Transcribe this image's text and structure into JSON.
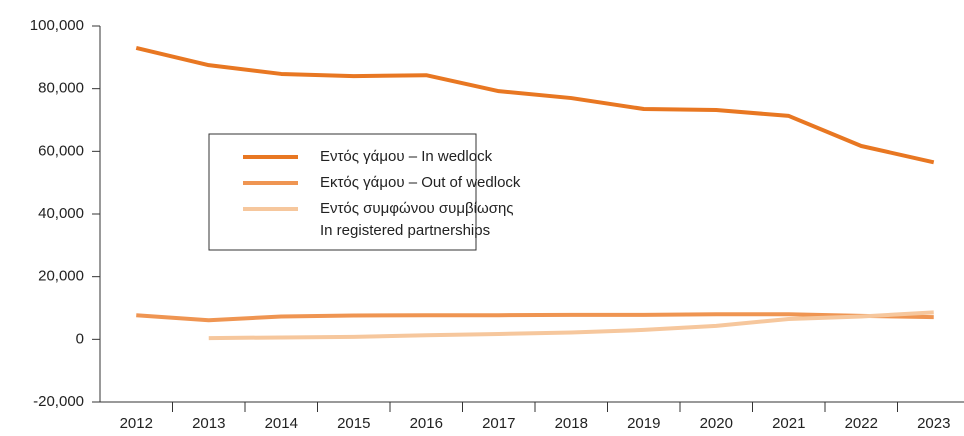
{
  "chart_data": {
    "type": "line",
    "categories": [
      "2012",
      "2013",
      "2014",
      "2015",
      "2016",
      "2017",
      "2018",
      "2019",
      "2020",
      "2021",
      "2022",
      "2023"
    ],
    "series": [
      {
        "name": "Εντός γάμου – In wedlock",
        "color": "#e87722",
        "values": [
          93000,
          87500,
          84700,
          84000,
          84300,
          79200,
          77000,
          73500,
          73200,
          71300,
          61700,
          56500
        ]
      },
      {
        "name": "Εκτός γάμου – Out of wedlock",
        "color": "#ef9552",
        "values": [
          7700,
          6100,
          7300,
          7600,
          7700,
          7700,
          7800,
          7800,
          8000,
          8000,
          7500,
          7100
        ]
      },
      {
        "name": "Εντός συμφώνου συμβίωσης\nIn registered partnerships",
        "color": "#f6c79d",
        "values": [
          null,
          400,
          600,
          800,
          1300,
          1700,
          2200,
          3000,
          4300,
          6500,
          7300,
          8600
        ]
      }
    ],
    "ylim": [
      -20000,
      100000
    ],
    "yticks": [
      {
        "value": -20000,
        "label": "-20,000"
      },
      0,
      {
        "value": 20000,
        "label": "20,000"
      },
      {
        "value": 40000,
        "label": "40,000"
      },
      {
        "value": 60000,
        "label": "60,000"
      },
      {
        "value": 80000,
        "label": "80,000"
      },
      {
        "value": 100000,
        "label": "100,000"
      }
    ],
    "grid": false,
    "legend": "center-left"
  }
}
